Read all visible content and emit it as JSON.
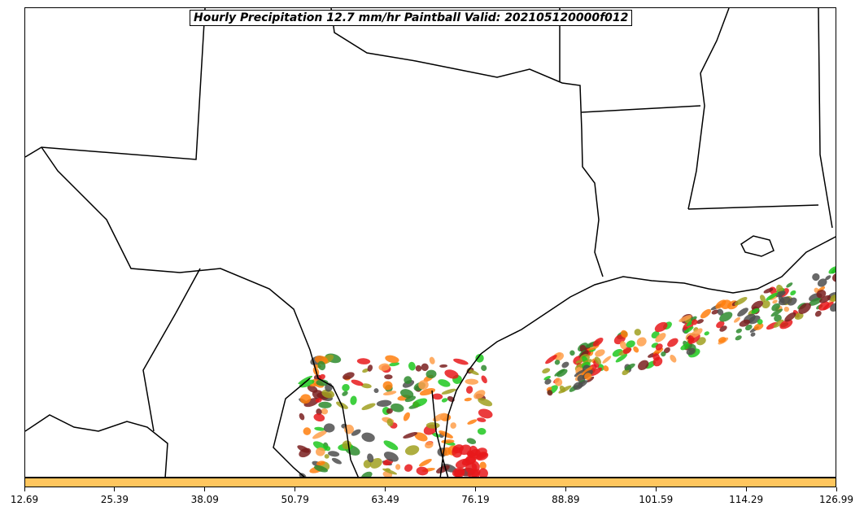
{
  "title": "Hourly Precipitation 12.7 mm/hr Paintball Valid: 202105120000f012",
  "colorbar": {
    "color": "#ffc65e",
    "tick_labels": [
      "12.69",
      "25.39",
      "38.09",
      "50.79",
      "63.49",
      "76.19",
      "88.89",
      "101.59",
      "114.29",
      "126.99"
    ]
  },
  "paintball_colors": [
    "#e8191b",
    "#ff7f0e",
    "#1fc81f",
    "#7a1f1f",
    "#4d4d4d",
    "#a0a020",
    "#2e8b2e",
    "#ff9f4a"
  ]
}
